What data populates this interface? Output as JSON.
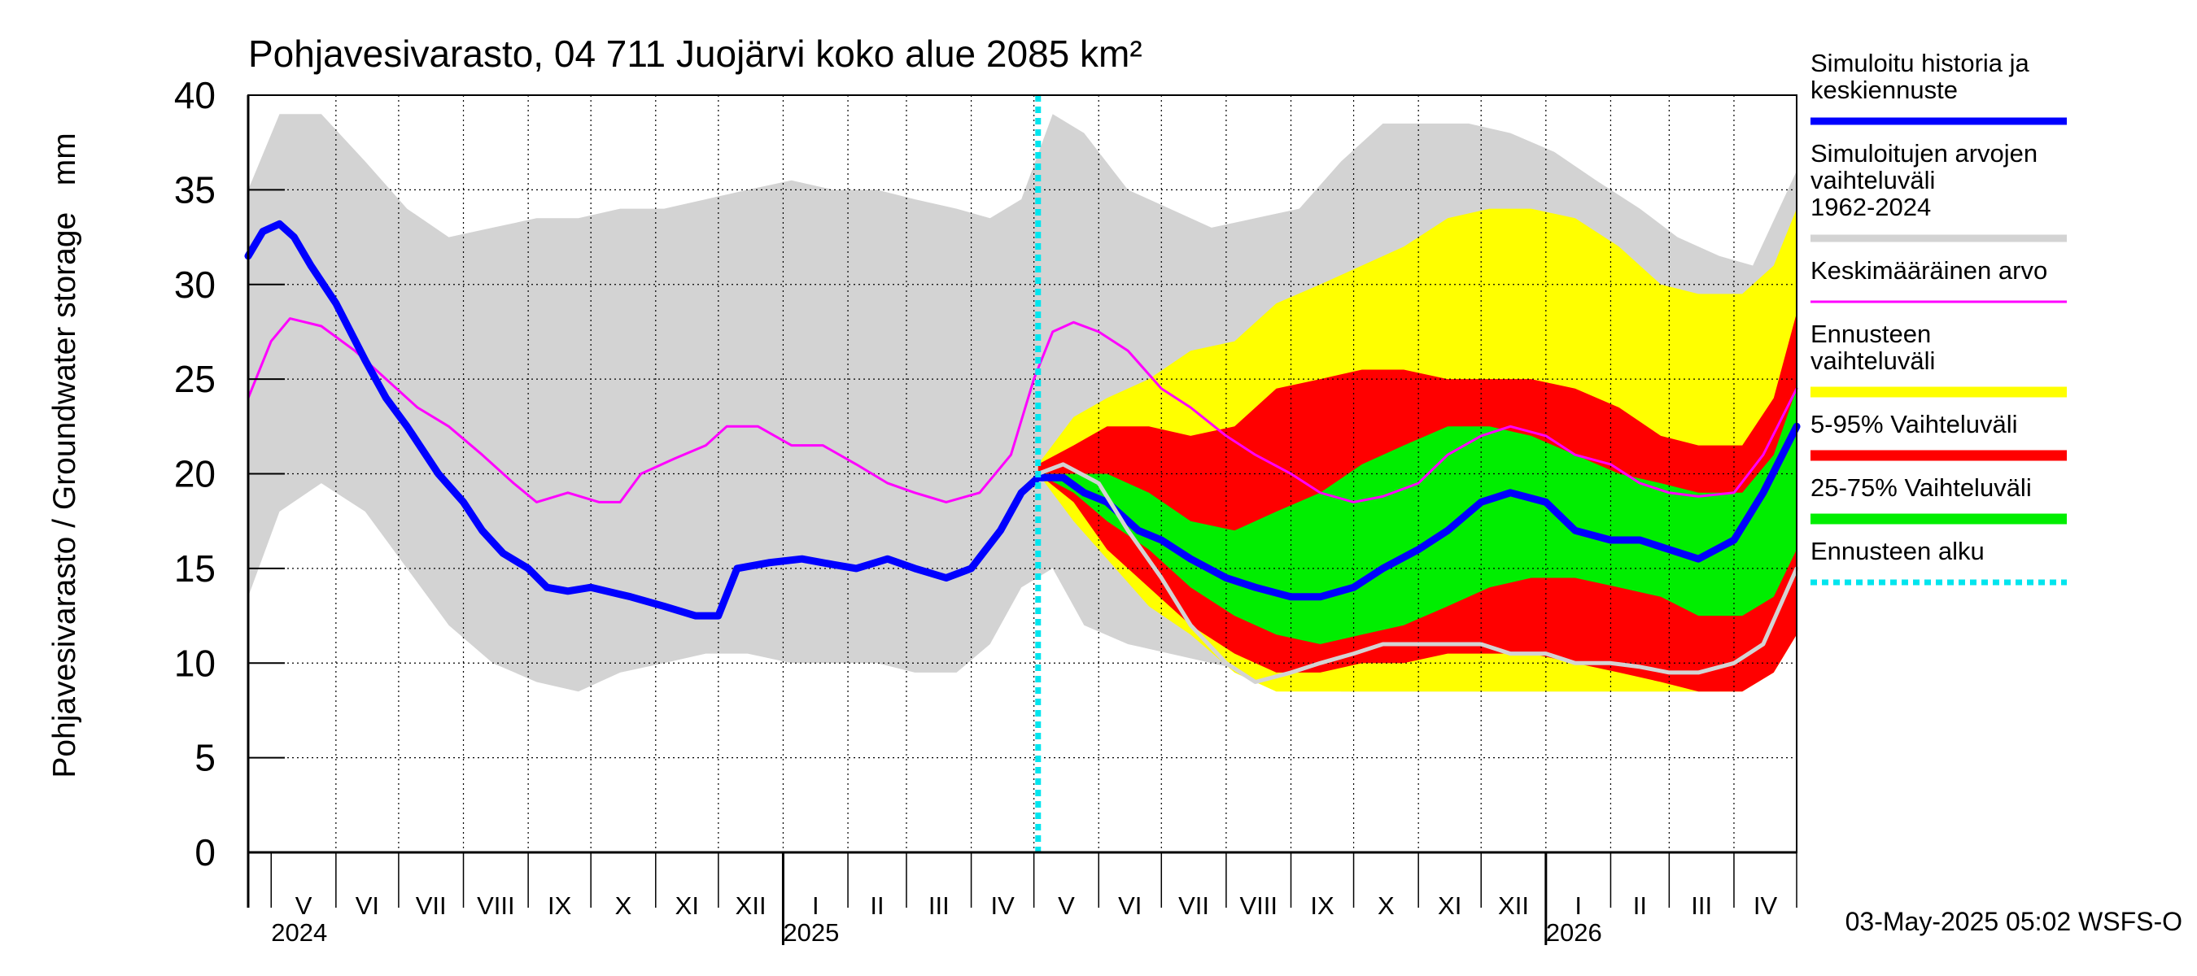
{
  "chart_data": {
    "type": "area",
    "title": "Pohjavesivarasto, 04 711 Juojärvi koko alue 2085 km²",
    "ylabel": "Pohjavesivarasto / Groundwater storage   mm",
    "ylim": [
      0,
      40
    ],
    "yticks": [
      "0",
      "5",
      "10",
      "15",
      "20",
      "25",
      "30",
      "35",
      "40"
    ],
    "x_start": "2024-04-20",
    "x_end": "2026-05-01",
    "forecast_start": "2025-05-03",
    "months": [
      {
        "label": "V",
        "start": "2024-05-01",
        "end": "2024-06-01"
      },
      {
        "label": "VI",
        "start": "2024-06-01",
        "end": "2024-07-01"
      },
      {
        "label": "VII",
        "start": "2024-07-01",
        "end": "2024-08-01"
      },
      {
        "label": "VIII",
        "start": "2024-08-01",
        "end": "2024-09-01"
      },
      {
        "label": "IX",
        "start": "2024-09-01",
        "end": "2024-10-01"
      },
      {
        "label": "X",
        "start": "2024-10-01",
        "end": "2024-11-01"
      },
      {
        "label": "XI",
        "start": "2024-11-01",
        "end": "2024-12-01"
      },
      {
        "label": "XII",
        "start": "2024-12-01",
        "end": "2025-01-01"
      },
      {
        "label": "I",
        "start": "2025-01-01",
        "end": "2025-02-01"
      },
      {
        "label": "II",
        "start": "2025-02-01",
        "end": "2025-03-01"
      },
      {
        "label": "III",
        "start": "2025-03-01",
        "end": "2025-04-01"
      },
      {
        "label": "IV",
        "start": "2025-04-01",
        "end": "2025-05-01"
      },
      {
        "label": "V",
        "start": "2025-05-01",
        "end": "2025-06-01"
      },
      {
        "label": "VI",
        "start": "2025-06-01",
        "end": "2025-07-01"
      },
      {
        "label": "VII",
        "start": "2025-07-01",
        "end": "2025-08-01"
      },
      {
        "label": "VIII",
        "start": "2025-08-01",
        "end": "2025-09-01"
      },
      {
        "label": "IX",
        "start": "2025-09-01",
        "end": "2025-10-01"
      },
      {
        "label": "X",
        "start": "2025-10-01",
        "end": "2025-11-01"
      },
      {
        "label": "XI",
        "start": "2025-11-01",
        "end": "2025-12-01"
      },
      {
        "label": "XII",
        "start": "2025-12-01",
        "end": "2026-01-01"
      },
      {
        "label": "I",
        "start": "2026-01-01",
        "end": "2026-02-01"
      },
      {
        "label": "II",
        "start": "2026-02-01",
        "end": "2026-03-01"
      },
      {
        "label": "III",
        "start": "2026-03-01",
        "end": "2026-04-01"
      },
      {
        "label": "IV",
        "start": "2026-04-01",
        "end": "2026-05-01"
      }
    ],
    "years": [
      {
        "label": "2024",
        "date": "2024-05-01"
      },
      {
        "label": "2025",
        "date": "2025-01-01"
      },
      {
        "label": "2026",
        "date": "2026-01-01"
      }
    ],
    "year_ticks": [
      "2025-01-01",
      "2026-01-01"
    ],
    "series": [
      {
        "name": "Simuloitujen arvojen vaihteluväli 1962-2024",
        "kind": "band",
        "color": "#d3d3d3",
        "x": [
          "2024-04-20",
          "2024-05-05",
          "2024-05-25",
          "2024-06-15",
          "2024-07-05",
          "2024-07-25",
          "2024-08-15",
          "2024-09-05",
          "2024-09-25",
          "2024-10-15",
          "2024-11-05",
          "2024-11-25",
          "2024-12-15",
          "2025-01-05",
          "2025-01-25",
          "2025-02-15",
          "2025-03-05",
          "2025-03-25",
          "2025-04-10",
          "2025-04-25",
          "2025-05-10",
          "2025-05-25",
          "2025-06-15",
          "2025-07-05",
          "2025-07-25",
          "2025-08-15",
          "2025-09-05",
          "2025-09-25",
          "2025-10-15",
          "2025-11-05",
          "2025-11-25",
          "2025-12-15",
          "2026-01-05",
          "2026-01-25",
          "2026-02-15",
          "2026-03-05",
          "2026-03-25",
          "2026-04-10",
          "2026-05-01"
        ],
        "low": [
          13.5,
          18.0,
          19.5,
          18.0,
          15.0,
          12.0,
          10.0,
          9.0,
          8.5,
          9.5,
          10.0,
          10.5,
          10.5,
          10.0,
          10.0,
          10.0,
          9.5,
          9.5,
          11.0,
          14.0,
          15.0,
          12.0,
          11.0,
          10.5,
          10.0,
          9.5,
          9.0,
          8.5,
          8.5,
          8.5,
          8.5,
          8.5,
          8.5,
          8.5,
          8.5,
          8.5,
          8.5,
          9.5,
          13.0
        ],
        "high": [
          35.0,
          39.0,
          39.0,
          36.5,
          34.0,
          32.5,
          33.0,
          33.5,
          33.5,
          34.0,
          34.0,
          34.5,
          35.0,
          35.5,
          35.0,
          35.0,
          34.5,
          34.0,
          33.5,
          34.5,
          39.0,
          38.0,
          35.0,
          34.0,
          33.0,
          33.5,
          34.0,
          36.5,
          38.5,
          38.5,
          38.5,
          38.0,
          37.0,
          35.5,
          34.0,
          32.5,
          31.5,
          31.0,
          36.0
        ]
      },
      {
        "name": "Ennusteen vaihteluväli",
        "kind": "band",
        "color": "#ffff00",
        "x": [
          "2025-05-03",
          "2025-05-20",
          "2025-06-05",
          "2025-06-25",
          "2025-07-15",
          "2025-08-05",
          "2025-08-25",
          "2025-09-15",
          "2025-10-05",
          "2025-10-25",
          "2025-11-15",
          "2025-12-05",
          "2025-12-25",
          "2026-01-15",
          "2026-02-05",
          "2026-02-25",
          "2026-03-15",
          "2026-04-05",
          "2026-04-20",
          "2026-05-01"
        ],
        "low": [
          20.0,
          17.5,
          15.5,
          13.0,
          11.5,
          9.5,
          8.5,
          8.5,
          8.5,
          8.5,
          8.5,
          8.5,
          8.5,
          8.5,
          8.5,
          8.5,
          8.5,
          8.5,
          9.5,
          11.5
        ],
        "high": [
          20.5,
          23.0,
          24.0,
          25.0,
          26.5,
          27.0,
          29.0,
          30.0,
          31.0,
          32.0,
          33.5,
          34.0,
          34.0,
          33.5,
          32.0,
          30.0,
          29.5,
          29.5,
          31.0,
          34.0
        ]
      },
      {
        "name": "5-95% Vaihteluväli",
        "kind": "band",
        "color": "#ff0000",
        "x": [
          "2025-05-03",
          "2025-05-20",
          "2025-06-05",
          "2025-06-25",
          "2025-07-15",
          "2025-08-05",
          "2025-08-25",
          "2025-09-15",
          "2025-10-05",
          "2025-10-25",
          "2025-11-15",
          "2025-12-05",
          "2025-12-25",
          "2026-01-15",
          "2026-02-05",
          "2026-02-25",
          "2026-03-15",
          "2026-04-05",
          "2026-04-20",
          "2026-05-01"
        ],
        "low": [
          20.0,
          18.5,
          16.0,
          14.0,
          12.0,
          10.5,
          9.5,
          9.5,
          10.0,
          10.0,
          10.5,
          10.5,
          10.5,
          10.0,
          9.5,
          9.0,
          8.5,
          8.5,
          9.5,
          11.5
        ],
        "high": [
          20.5,
          21.5,
          22.5,
          22.5,
          22.0,
          22.5,
          24.5,
          25.0,
          25.5,
          25.5,
          25.0,
          25.0,
          25.0,
          24.5,
          23.5,
          22.0,
          21.5,
          21.5,
          24.0,
          28.5
        ]
      },
      {
        "name": "25-75% Vaihteluväli",
        "kind": "band",
        "color": "#00ee00",
        "x": [
          "2025-05-03",
          "2025-05-20",
          "2025-06-05",
          "2025-06-25",
          "2025-07-15",
          "2025-08-05",
          "2025-08-25",
          "2025-09-15",
          "2025-10-05",
          "2025-10-25",
          "2025-11-15",
          "2025-12-05",
          "2025-12-25",
          "2026-01-15",
          "2026-02-05",
          "2026-02-25",
          "2026-03-15",
          "2026-04-05",
          "2026-04-20",
          "2026-05-01"
        ],
        "low": [
          20.0,
          19.0,
          17.5,
          16.0,
          14.0,
          12.5,
          11.5,
          11.0,
          11.5,
          12.0,
          13.0,
          14.0,
          14.5,
          14.5,
          14.0,
          13.5,
          12.5,
          12.5,
          13.5,
          16.0
        ],
        "high": [
          20.0,
          20.0,
          20.0,
          19.0,
          17.5,
          17.0,
          18.0,
          19.0,
          20.5,
          21.5,
          22.5,
          22.5,
          22.0,
          21.0,
          20.0,
          19.5,
          19.0,
          19.0,
          21.0,
          24.5
        ]
      },
      {
        "name": "Keskimääräinen arvo",
        "kind": "line",
        "color": "#ff00ff",
        "width": 3,
        "x": [
          "2024-04-20",
          "2024-05-01",
          "2024-05-10",
          "2024-05-25",
          "2024-06-10",
          "2024-06-25",
          "2024-07-10",
          "2024-07-25",
          "2024-08-10",
          "2024-08-25",
          "2024-09-05",
          "2024-09-20",
          "2024-10-05",
          "2024-10-15",
          "2024-10-25",
          "2024-11-10",
          "2024-11-25",
          "2024-12-05",
          "2024-12-20",
          "2025-01-05",
          "2025-01-20",
          "2025-02-05",
          "2025-02-20",
          "2025-03-05",
          "2025-03-20",
          "2025-04-05",
          "2025-04-20",
          "2025-05-01",
          "2025-05-10",
          "2025-05-20",
          "2025-06-01",
          "2025-06-15",
          "2025-07-01",
          "2025-07-15",
          "2025-08-01",
          "2025-08-15",
          "2025-09-01",
          "2025-09-15",
          "2025-10-01",
          "2025-10-15",
          "2025-11-01",
          "2025-11-15",
          "2025-12-01",
          "2025-12-15",
          "2026-01-01",
          "2026-01-15",
          "2026-02-01",
          "2026-02-15",
          "2026-03-01",
          "2026-03-15",
          "2026-04-01",
          "2026-04-15",
          "2026-05-01"
        ],
        "y": [
          24.0,
          27.0,
          28.2,
          27.8,
          26.5,
          25.0,
          23.5,
          22.5,
          21.0,
          19.5,
          18.5,
          19.0,
          18.5,
          18.5,
          20.0,
          20.8,
          21.5,
          22.5,
          22.5,
          21.5,
          21.5,
          20.5,
          19.5,
          19.0,
          18.5,
          19.0,
          21.0,
          25.0,
          27.5,
          28.0,
          27.5,
          26.5,
          24.5,
          23.5,
          22.0,
          21.0,
          20.0,
          19.0,
          18.5,
          18.8,
          19.5,
          21.0,
          22.0,
          22.5,
          22.0,
          21.0,
          20.5,
          19.5,
          19.0,
          18.8,
          19.0,
          21.0,
          24.5
        ]
      },
      {
        "name": "Simuloitu historia ja keskiennuste",
        "kind": "line",
        "color": "#0000ff",
        "width": 9,
        "x": [
          "2024-04-20",
          "2024-04-27",
          "2024-05-05",
          "2024-05-12",
          "2024-05-20",
          "2024-06-01",
          "2024-06-15",
          "2024-06-25",
          "2024-07-05",
          "2024-07-20",
          "2024-08-01",
          "2024-08-10",
          "2024-08-20",
          "2024-09-01",
          "2024-09-10",
          "2024-09-20",
          "2024-10-01",
          "2024-10-20",
          "2024-11-05",
          "2024-11-20",
          "2024-12-01",
          "2024-12-10",
          "2024-12-25",
          "2025-01-10",
          "2025-01-25",
          "2025-02-05",
          "2025-02-20",
          "2025-03-05",
          "2025-03-20",
          "2025-04-01",
          "2025-04-15",
          "2025-04-25",
          "2025-05-03",
          "2025-05-15",
          "2025-05-25",
          "2025-06-05",
          "2025-06-20",
          "2025-07-01",
          "2025-07-15",
          "2025-08-01",
          "2025-08-15",
          "2025-09-01",
          "2025-09-15",
          "2025-10-01",
          "2025-10-15",
          "2025-11-01",
          "2025-11-15",
          "2025-12-01",
          "2025-12-15",
          "2026-01-01",
          "2026-01-15",
          "2026-02-01",
          "2026-02-15",
          "2026-03-01",
          "2026-03-15",
          "2026-04-01",
          "2026-04-15",
          "2026-05-01"
        ],
        "y": [
          31.5,
          32.8,
          33.2,
          32.5,
          31.0,
          29.0,
          26.0,
          24.0,
          22.5,
          20.0,
          18.5,
          17.0,
          15.8,
          15.0,
          14.0,
          13.8,
          14.0,
          13.5,
          13.0,
          12.5,
          12.5,
          15.0,
          15.3,
          15.5,
          15.2,
          15.0,
          15.5,
          15.0,
          14.5,
          15.0,
          17.0,
          19.0,
          19.8,
          19.8,
          19.0,
          18.5,
          17.0,
          16.5,
          15.5,
          14.5,
          14.0,
          13.5,
          13.5,
          14.0,
          15.0,
          16.0,
          17.0,
          18.5,
          19.0,
          18.5,
          17.0,
          16.5,
          16.5,
          16.0,
          15.5,
          16.5,
          19.0,
          22.5
        ]
      },
      {
        "name": "",
        "kind": "line",
        "color": "#d3d3d3",
        "width": 5,
        "x": [
          "2025-05-03",
          "2025-05-15",
          "2025-06-01",
          "2025-06-15",
          "2025-07-01",
          "2025-07-15",
          "2025-08-01",
          "2025-08-15",
          "2025-09-01",
          "2025-09-15",
          "2025-10-01",
          "2025-10-15",
          "2025-11-01",
          "2025-11-15",
          "2025-12-01",
          "2025-12-15",
          "2026-01-01",
          "2026-01-15",
          "2026-02-01",
          "2026-02-15",
          "2026-03-01",
          "2026-03-15",
          "2026-04-01",
          "2026-04-15",
          "2026-05-01"
        ],
        "y": [
          20.0,
          20.5,
          19.5,
          17.0,
          14.5,
          12.0,
          10.0,
          9.0,
          9.5,
          10.0,
          10.5,
          11.0,
          11.0,
          11.0,
          11.0,
          10.5,
          10.5,
          10.0,
          10.0,
          9.8,
          9.5,
          9.5,
          10.0,
          11.0,
          15.0
        ]
      },
      {
        "name": "Ennusteen alku",
        "kind": "vline",
        "color": "#00e5ee",
        "x": "2025-05-03"
      }
    ],
    "legend": [
      {
        "label": "Simuloitu historia ja keskiennuste",
        "color": "#0000ff",
        "width": 9,
        "dash": ""
      },
      {
        "label": "Simuloitujen arvojen vaihteluväli 1962-2024",
        "color": "#d3d3d3",
        "width": 9,
        "dash": ""
      },
      {
        "label": "Keskimääräinen arvo",
        "color": "#ff00ff",
        "width": 3,
        "dash": ""
      },
      {
        "label": "Ennusteen vaihteluväli",
        "color": "#ffff00",
        "width": 13,
        "dash": ""
      },
      {
        "label": "5-95% Vaihteluväli",
        "color": "#ff0000",
        "width": 13,
        "dash": ""
      },
      {
        "label": "25-75% Vaihteluväli",
        "color": "#00ee00",
        "width": 13,
        "dash": ""
      },
      {
        "label": "Ennusteen alku",
        "color": "#00e5ee",
        "width": 7,
        "dash": "8,6"
      }
    ],
    "legend_placement": "right",
    "grid": true,
    "footer": "03-May-2025 05:02 WSFS-O"
  }
}
